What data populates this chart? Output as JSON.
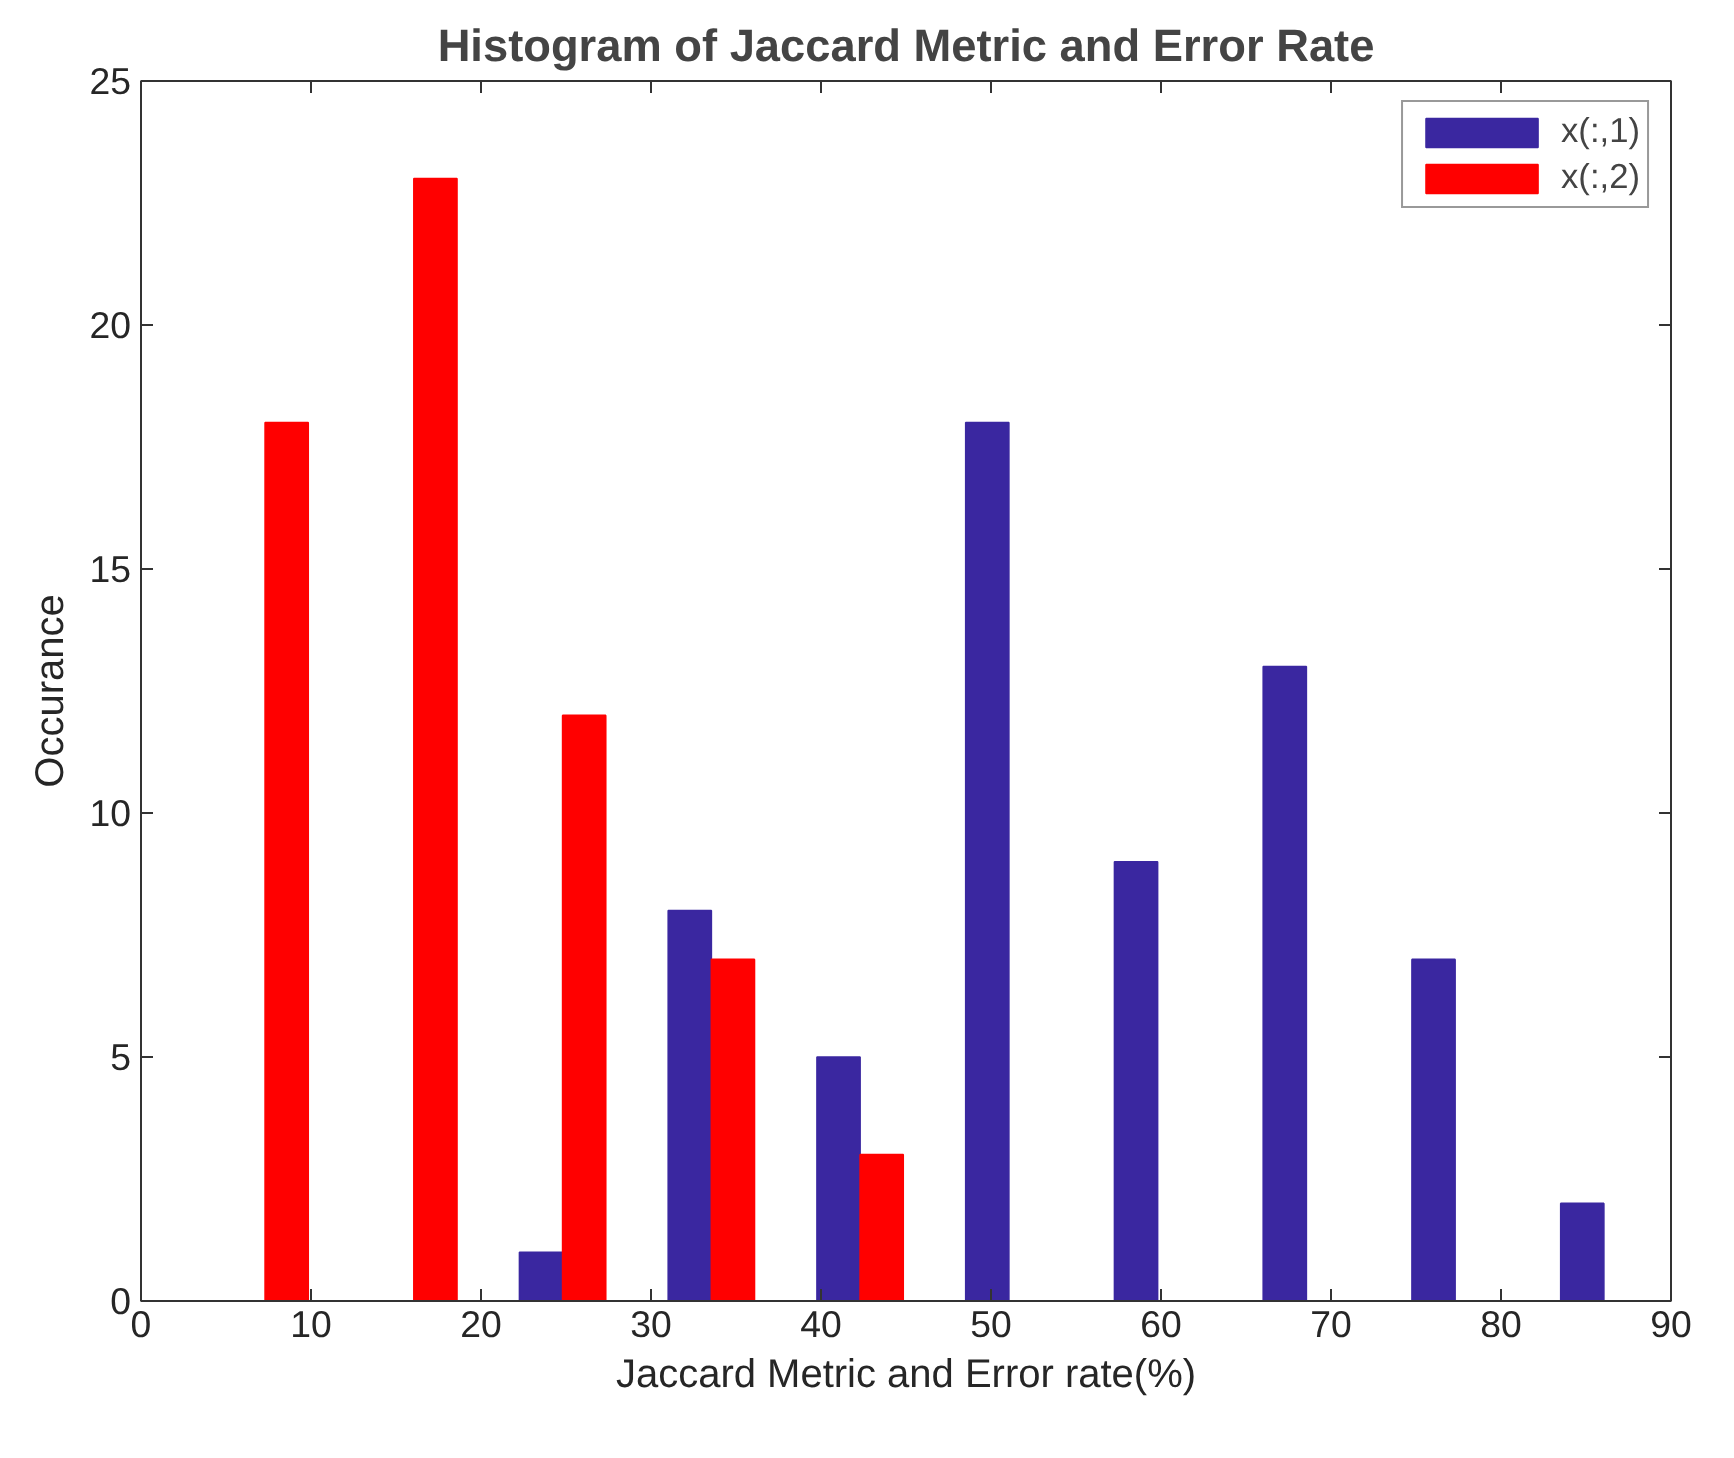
{
  "chart_data": {
    "type": "bar",
    "title": "Histogram of Jaccard Metric and Error Rate",
    "xlabel": "Jaccard Metric and Error rate(%)",
    "ylabel": "Occurance",
    "x": [
      7.3,
      16.05,
      24.8,
      33.55,
      42.3,
      51.05,
      59.8,
      68.55,
      77.3,
      86.05
    ],
    "series": [
      {
        "name": "x(:,1)",
        "color": "#3a27a0",
        "values": [
          0,
          0,
          1,
          8,
          5,
          18,
          9,
          13,
          7,
          2
        ]
      },
      {
        "name": "x(:,2)",
        "color": "#ff0000",
        "values": [
          18,
          23,
          12,
          7,
          3,
          0,
          0,
          0,
          0,
          0
        ]
      }
    ],
    "xlim": [
      0,
      90
    ],
    "xticks": [
      0,
      10,
      20,
      30,
      40,
      50,
      60,
      70,
      80,
      90
    ],
    "ylim": [
      0,
      25
    ],
    "yticks": [
      0,
      5,
      10,
      15,
      20,
      25
    ],
    "grid": false,
    "legend": "top right"
  }
}
